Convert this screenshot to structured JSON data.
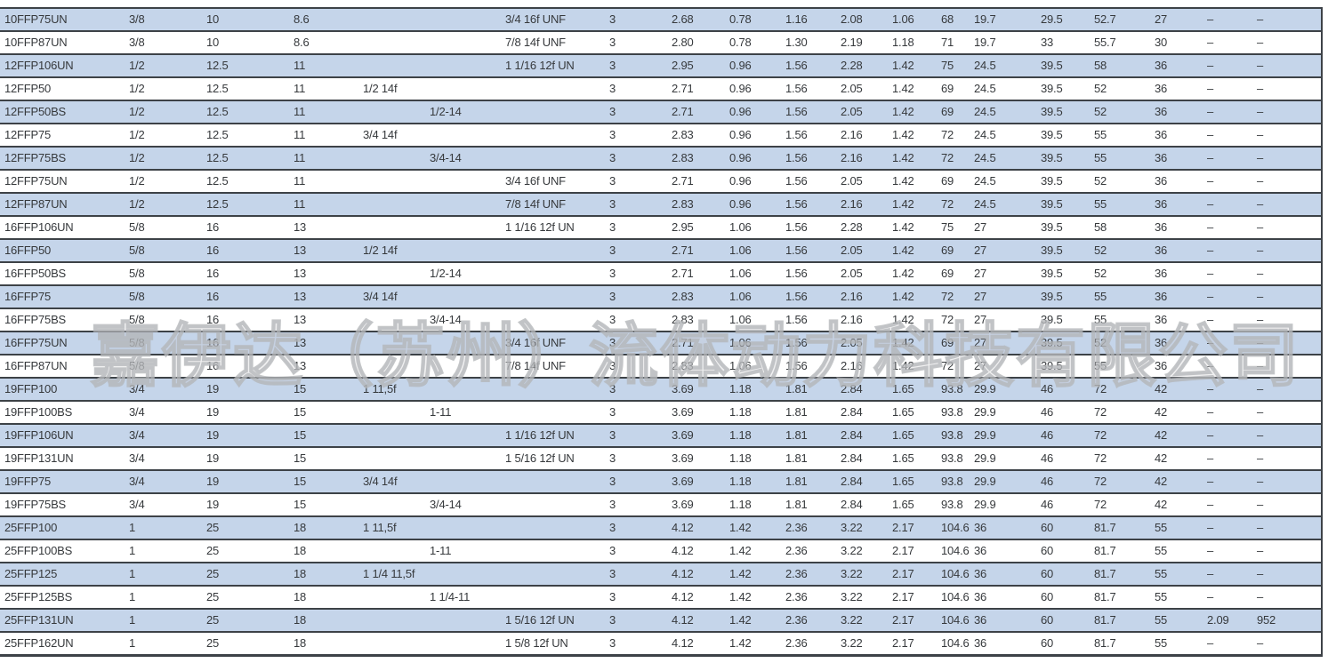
{
  "watermark": {
    "text": "嘉伊达（苏州）流体动力科技有限公司"
  },
  "colors": {
    "stripe_blue": "#c5d5ea",
    "grid_line": "#3d4247",
    "text": "#36393c"
  },
  "table": {
    "column_count": 20,
    "empty_cell": "",
    "dash": "–",
    "rows": [
      [
        "10FFP75UN",
        "3/8",
        "10",
        "8.6",
        "",
        "",
        "3/4 16f UNF",
        "3",
        "2.68",
        "0.78",
        "1.16",
        "2.08",
        "1.06",
        "68",
        "19.7",
        "29.5",
        "52.7",
        "27",
        "–",
        "–"
      ],
      [
        "10FFP87UN",
        "3/8",
        "10",
        "8.6",
        "",
        "",
        "7/8 14f UNF",
        "3",
        "2.80",
        "0.78",
        "1.30",
        "2.19",
        "1.18",
        "71",
        "19.7",
        "33",
        "55.7",
        "30",
        "–",
        "–"
      ],
      [
        "12FFP106UN",
        "1/2",
        "12.5",
        "11",
        "",
        "",
        "1 1/16 12f UN",
        "3",
        "2.95",
        "0.96",
        "1.56",
        "2.28",
        "1.42",
        "75",
        "24.5",
        "39.5",
        "58",
        "36",
        "–",
        "–"
      ],
      [
        "12FFP50",
        "1/2",
        "12.5",
        "11",
        "1/2 14f",
        "",
        "",
        "3",
        "2.71",
        "0.96",
        "1.56",
        "2.05",
        "1.42",
        "69",
        "24.5",
        "39.5",
        "52",
        "36",
        "–",
        "–"
      ],
      [
        "12FFP50BS",
        "1/2",
        "12.5",
        "11",
        "",
        "1/2-14",
        "",
        "3",
        "2.71",
        "0.96",
        "1.56",
        "2.05",
        "1.42",
        "69",
        "24.5",
        "39.5",
        "52",
        "36",
        "–",
        "–"
      ],
      [
        "12FFP75",
        "1/2",
        "12.5",
        "11",
        "3/4 14f",
        "",
        "",
        "3",
        "2.83",
        "0.96",
        "1.56",
        "2.16",
        "1.42",
        "72",
        "24.5",
        "39.5",
        "55",
        "36",
        "–",
        "–"
      ],
      [
        "12FFP75BS",
        "1/2",
        "12.5",
        "11",
        "",
        "3/4-14",
        "",
        "3",
        "2.83",
        "0.96",
        "1.56",
        "2.16",
        "1.42",
        "72",
        "24.5",
        "39.5",
        "55",
        "36",
        "–",
        "–"
      ],
      [
        "12FFP75UN",
        "1/2",
        "12.5",
        "11",
        "",
        "",
        "3/4 16f UNF",
        "3",
        "2.71",
        "0.96",
        "1.56",
        "2.05",
        "1.42",
        "69",
        "24.5",
        "39.5",
        "52",
        "36",
        "–",
        "–"
      ],
      [
        "12FFP87UN",
        "1/2",
        "12.5",
        "11",
        "",
        "",
        "7/8 14f UNF",
        "3",
        "2.83",
        "0.96",
        "1.56",
        "2.16",
        "1.42",
        "72",
        "24.5",
        "39.5",
        "55",
        "36",
        "–",
        "–"
      ],
      [
        "16FFP106UN",
        "5/8",
        "16",
        "13",
        "",
        "",
        "1 1/16 12f UN",
        "3",
        "2.95",
        "1.06",
        "1.56",
        "2.28",
        "1.42",
        "75",
        "27",
        "39.5",
        "58",
        "36",
        "–",
        "–"
      ],
      [
        "16FFP50",
        "5/8",
        "16",
        "13",
        "1/2 14f",
        "",
        "",
        "3",
        "2.71",
        "1.06",
        "1.56",
        "2.05",
        "1.42",
        "69",
        "27",
        "39.5",
        "52",
        "36",
        "–",
        "–"
      ],
      [
        "16FFP50BS",
        "5/8",
        "16",
        "13",
        "",
        "1/2-14",
        "",
        "3",
        "2.71",
        "1.06",
        "1.56",
        "2.05",
        "1.42",
        "69",
        "27",
        "39.5",
        "52",
        "36",
        "–",
        "–"
      ],
      [
        "16FFP75",
        "5/8",
        "16",
        "13",
        "3/4 14f",
        "",
        "",
        "3",
        "2.83",
        "1.06",
        "1.56",
        "2.16",
        "1.42",
        "72",
        "27",
        "39.5",
        "55",
        "36",
        "–",
        "–"
      ],
      [
        "16FFP75BS",
        "5/8",
        "16",
        "13",
        "",
        "3/4-14",
        "",
        "3",
        "2.83",
        "1.06",
        "1.56",
        "2.16",
        "1.42",
        "72",
        "27",
        "39.5",
        "55",
        "36",
        "–",
        "–"
      ],
      [
        "16FFP75UN",
        "5/8",
        "16",
        "13",
        "",
        "",
        "3/4 16f UNF",
        "3",
        "2.71",
        "1.06",
        "1.56",
        "2.05",
        "1.42",
        "69",
        "27",
        "39.5",
        "52",
        "36",
        "–",
        "–"
      ],
      [
        "16FFP87UN",
        "5/8",
        "16",
        "13",
        "",
        "",
        "7/8 14f UNF",
        "3",
        "2.83",
        "1.06",
        "1.56",
        "2.16",
        "1.42",
        "72",
        "27",
        "39.5",
        "55",
        "36",
        "–",
        "–"
      ],
      [
        "19FFP100",
        "3/4",
        "19",
        "15",
        "1 11,5f",
        "",
        "",
        "3",
        "3.69",
        "1.18",
        "1.81",
        "2.84",
        "1.65",
        "93.8",
        "29.9",
        "46",
        "72",
        "42",
        "–",
        "–"
      ],
      [
        "19FFP100BS",
        "3/4",
        "19",
        "15",
        "",
        "1-11",
        "",
        "3",
        "3.69",
        "1.18",
        "1.81",
        "2.84",
        "1.65",
        "93.8",
        "29.9",
        "46",
        "72",
        "42",
        "–",
        "–"
      ],
      [
        "19FFP106UN",
        "3/4",
        "19",
        "15",
        "",
        "",
        "1 1/16 12f UN",
        "3",
        "3.69",
        "1.18",
        "1.81",
        "2.84",
        "1.65",
        "93.8",
        "29.9",
        "46",
        "72",
        "42",
        "–",
        "–"
      ],
      [
        "19FFP131UN",
        "3/4",
        "19",
        "15",
        "",
        "",
        "1 5/16 12f UN",
        "3",
        "3.69",
        "1.18",
        "1.81",
        "2.84",
        "1.65",
        "93.8",
        "29.9",
        "46",
        "72",
        "42",
        "–",
        "–"
      ],
      [
        "19FFP75",
        "3/4",
        "19",
        "15",
        "3/4 14f",
        "",
        "",
        "3",
        "3.69",
        "1.18",
        "1.81",
        "2.84",
        "1.65",
        "93.8",
        "29.9",
        "46",
        "72",
        "42",
        "–",
        "–"
      ],
      [
        "19FFP75BS",
        "3/4",
        "19",
        "15",
        "",
        "3/4-14",
        "",
        "3",
        "3.69",
        "1.18",
        "1.81",
        "2.84",
        "1.65",
        "93.8",
        "29.9",
        "46",
        "72",
        "42",
        "–",
        "–"
      ],
      [
        "25FFP100",
        "1",
        "25",
        "18",
        "1 11,5f",
        "",
        "",
        "3",
        "4.12",
        "1.42",
        "2.36",
        "3.22",
        "2.17",
        "104.6",
        "36",
        "60",
        "81.7",
        "55",
        "–",
        "–"
      ],
      [
        "25FFP100BS",
        "1",
        "25",
        "18",
        "",
        "1-11",
        "",
        "3",
        "4.12",
        "1.42",
        "2.36",
        "3.22",
        "2.17",
        "104.6",
        "36",
        "60",
        "81.7",
        "55",
        "–",
        "–"
      ],
      [
        "25FFP125",
        "1",
        "25",
        "18",
        "1 1/4 11,5f",
        "",
        "",
        "3",
        "4.12",
        "1.42",
        "2.36",
        "3.22",
        "2.17",
        "104.6",
        "36",
        "60",
        "81.7",
        "55",
        "–",
        "–"
      ],
      [
        "25FFP125BS",
        "1",
        "25",
        "18",
        "",
        "1 1/4-11",
        "",
        "3",
        "4.12",
        "1.42",
        "2.36",
        "3.22",
        "2.17",
        "104.6",
        "36",
        "60",
        "81.7",
        "55",
        "–",
        "–"
      ],
      [
        "25FFP131UN",
        "1",
        "25",
        "18",
        "",
        "",
        "1 5/16 12f UN",
        "3",
        "4.12",
        "1.42",
        "2.36",
        "3.22",
        "2.17",
        "104.6",
        "36",
        "60",
        "81.7",
        "55",
        "2.09",
        "952"
      ],
      [
        "25FFP162UN",
        "1",
        "25",
        "18",
        "",
        "",
        "1 5/8 12f UN",
        "3",
        "4.12",
        "1.42",
        "2.36",
        "3.22",
        "2.17",
        "104.6",
        "36",
        "60",
        "81.7",
        "55",
        "–",
        "–"
      ]
    ]
  }
}
